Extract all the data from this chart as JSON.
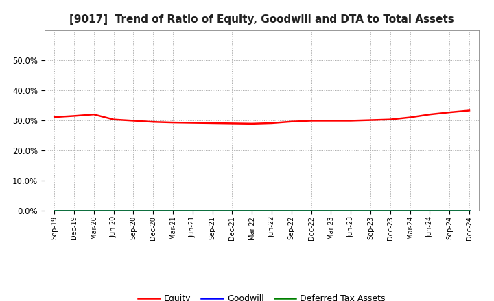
{
  "title": "[9017]  Trend of Ratio of Equity, Goodwill and DTA to Total Assets",
  "x_labels": [
    "Sep-19",
    "Dec-19",
    "Mar-20",
    "Jun-20",
    "Sep-20",
    "Dec-20",
    "Mar-21",
    "Jun-21",
    "Sep-21",
    "Dec-21",
    "Mar-22",
    "Jun-22",
    "Sep-22",
    "Dec-22",
    "Mar-23",
    "Jun-23",
    "Sep-23",
    "Dec-23",
    "Mar-24",
    "Jun-24",
    "Sep-24",
    "Dec-24"
  ],
  "equity": [
    0.311,
    0.315,
    0.32,
    0.303,
    0.299,
    0.295,
    0.293,
    0.292,
    0.291,
    0.29,
    0.289,
    0.291,
    0.296,
    0.299,
    0.299,
    0.299,
    0.301,
    0.303,
    0.31,
    0.32,
    0.327,
    0.333
  ],
  "goodwill": [
    0.0,
    0.0,
    0.0,
    0.0,
    0.0,
    0.0,
    0.0,
    0.0,
    0.0,
    0.0,
    0.0,
    0.0,
    0.0,
    0.0,
    0.0,
    0.0,
    0.0,
    0.0,
    0.0,
    0.0,
    0.0,
    0.0
  ],
  "dta": [
    0.0,
    0.0,
    0.0,
    0.0,
    0.0,
    0.0,
    0.0,
    0.0,
    0.0,
    0.0,
    0.0,
    0.0,
    0.0,
    0.0,
    0.0,
    0.0,
    0.0,
    0.0,
    0.0,
    0.0,
    0.0,
    0.0
  ],
  "equity_color": "#FF0000",
  "goodwill_color": "#0000FF",
  "dta_color": "#008000",
  "ylim": [
    0.0,
    0.6
  ],
  "yticks": [
    0.0,
    0.1,
    0.2,
    0.3,
    0.4,
    0.5
  ],
  "background_color": "#FFFFFF",
  "plot_bg_color": "#FFFFFF",
  "grid_color": "#AAAAAA",
  "title_fontsize": 11,
  "legend_labels": [
    "Equity",
    "Goodwill",
    "Deferred Tax Assets"
  ]
}
